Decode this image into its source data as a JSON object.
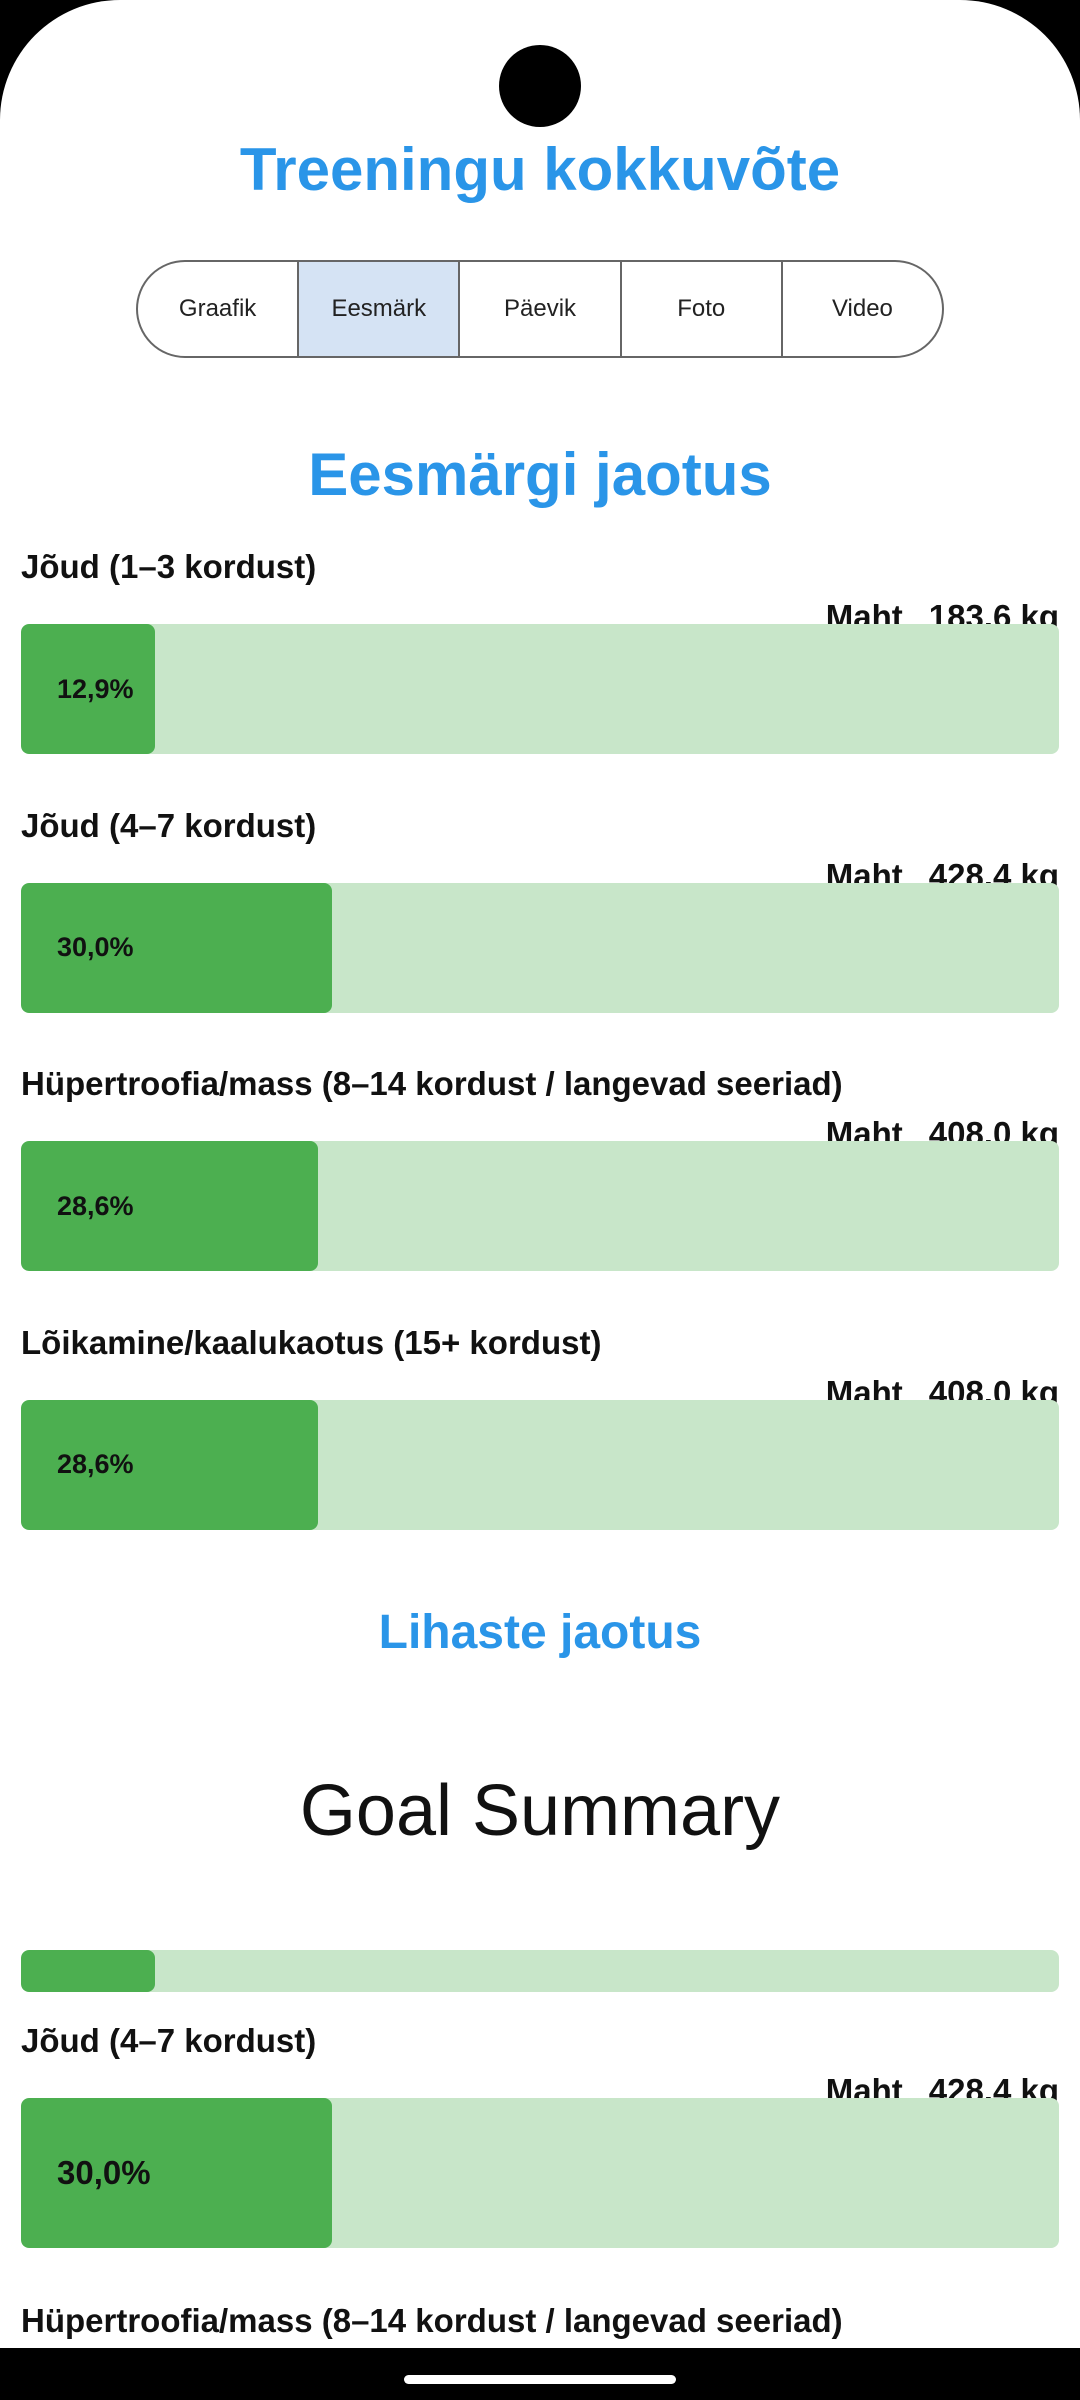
{
  "header": {
    "title": "Treeningu kokkuvõte"
  },
  "tabs": {
    "items": [
      "Graafik",
      "Eesmärk",
      "Päevik",
      "Foto",
      "Video"
    ],
    "selected": 1
  },
  "goal_section": {
    "title": "Eesmärgi jaotus",
    "items": [
      {
        "label": "Jõud (1–3 kordust)",
        "volume_label": "Maht",
        "volume": "183,6 kg",
        "percent": {
          "value": 12.9,
          "label": "12,9%"
        }
      },
      {
        "label": "Jõud (4–7 kordust)",
        "volume_label": "Maht",
        "volume": "428,4 kg",
        "percent": {
          "value": 30.0,
          "label": "30,0%"
        }
      },
      {
        "label": "Hüpertroofia/mass (8–14 kordust / langevad seeriad)",
        "volume_label": "Maht",
        "volume": "408,0 kg",
        "percent": {
          "value": 28.6,
          "label": "28,6%"
        }
      },
      {
        "label": "Lõikamine/kaalukaotus (15+ kordust)",
        "volume_label": "Maht",
        "volume": "408,0 kg",
        "percent": {
          "value": 28.6,
          "label": "28,6%"
        }
      }
    ]
  },
  "muscle_section": {
    "title": "Lihaste jaotus"
  },
  "summary": {
    "title": "Goal Summary",
    "partial_bar": {
      "percent": 12.9
    },
    "item": {
      "label": "Jõud (4–7 kordust)",
      "volume_label": "Maht",
      "volume": "428,4 kg",
      "percent": {
        "value": 30.0,
        "label": "30,0%"
      }
    },
    "next_label": "Hüpertroofia/mass (8–14 kordust / langevad seeriad)"
  }
}
